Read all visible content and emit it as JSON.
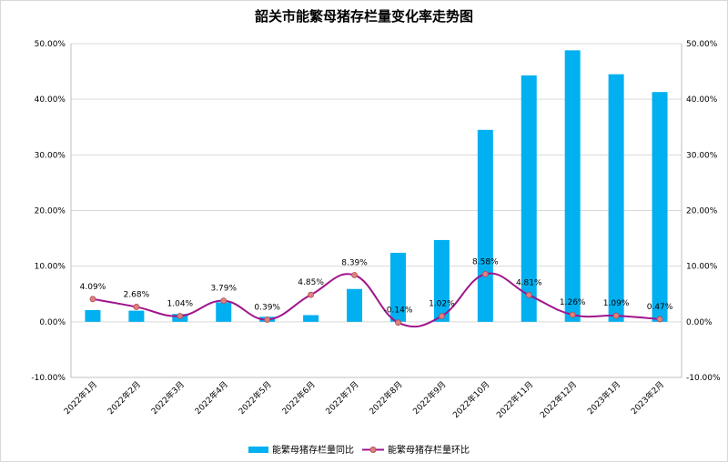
{
  "chart_data": {
    "type": "bar+line",
    "title": "韶关市能繁母猪存栏量变化率走势图",
    "categories": [
      "2022年1月",
      "2022年2月",
      "2022年3月",
      "2022年4月",
      "2022年5月",
      "2022年6月",
      "2022年7月",
      "2022年8月",
      "2022年9月",
      "2022年10月",
      "2022年11月",
      "2022年12月",
      "2023年1月",
      "2023年2月"
    ],
    "y_ticks": [
      "-10.00%",
      "0.00%",
      "10.00%",
      "20.00%",
      "30.00%",
      "40.00%",
      "50.00%"
    ],
    "ylim": [
      -10,
      50
    ],
    "series": [
      {
        "name": "能繁母猪存栏量同比",
        "type": "bar",
        "color": "#00b0f0",
        "values": [
          2.1,
          2.0,
          1.4,
          3.5,
          0.9,
          1.2,
          5.9,
          12.4,
          14.7,
          34.5,
          44.3,
          48.8,
          44.5,
          41.3
        ]
      },
      {
        "name": "能繁母猪存栏量环比",
        "type": "line",
        "color": "#a0148c",
        "marker_color": "#e08080",
        "values": [
          4.09,
          2.68,
          1.04,
          3.79,
          0.39,
          4.85,
          8.39,
          -0.14,
          1.02,
          8.58,
          4.81,
          1.26,
          1.09,
          0.47
        ],
        "labels": [
          "4.09%",
          "2.68%",
          "1.04%",
          "3.79%",
          "0.39%",
          "4.85%",
          "8.39%",
          "-0.14%",
          "1.02%",
          "8.58%",
          "4.81%",
          "1.26%",
          "1.09%",
          "0.47%"
        ]
      }
    ]
  }
}
